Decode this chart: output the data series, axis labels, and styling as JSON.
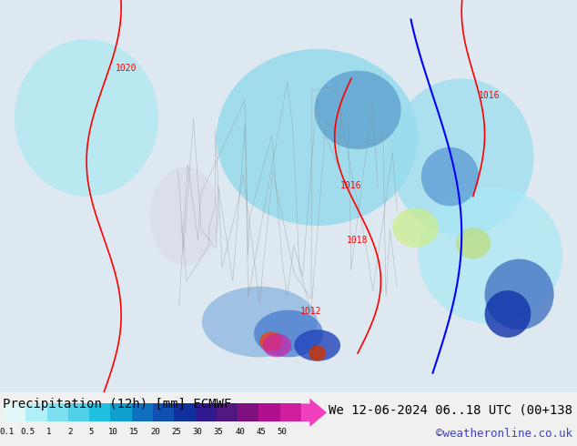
{
  "title_left": "Precipitation (12h) [mm] ECMWF",
  "title_right": "We 12-06-2024 06..18 UTC (00+138",
  "credit": "©weatheronline.co.uk",
  "colorbar_values": [
    0.1,
    0.5,
    1,
    2,
    5,
    10,
    15,
    20,
    25,
    30,
    35,
    40,
    45,
    50
  ],
  "colorbar_colors": [
    "#e0f8f8",
    "#b0eef8",
    "#7de0f0",
    "#50d0e8",
    "#20c0e0",
    "#10a0d0",
    "#1070c0",
    "#1050b0",
    "#1030a0",
    "#301890",
    "#501880",
    "#801080",
    "#b01090",
    "#d020a0",
    "#f040c0"
  ],
  "bg_color": "#f0f0f0",
  "map_bg": "#e8e8f0",
  "title_fontsize": 10,
  "credit_color": "#4040cc",
  "credit_fontsize": 9
}
